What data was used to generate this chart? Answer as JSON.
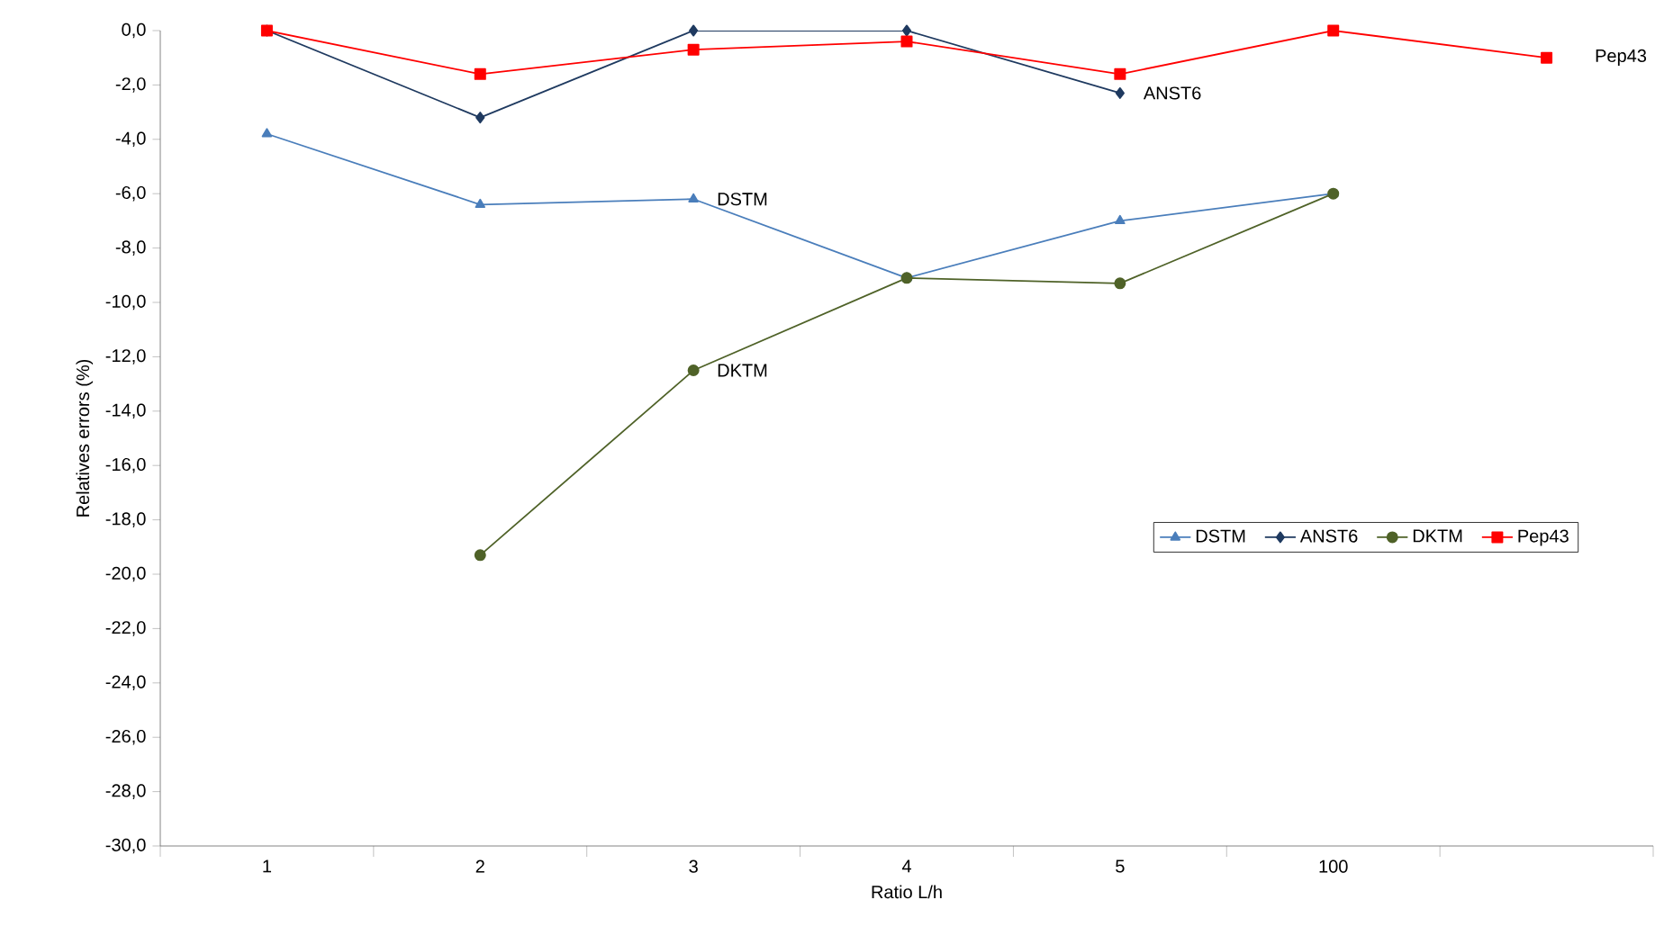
{
  "chart_data": {
    "type": "line",
    "xlabel": "Ratio L/h",
    "ylabel": "Relatives errors (%)",
    "categories": [
      "1",
      "2",
      "3",
      "4",
      "5",
      "100",
      null
    ],
    "ylim": [
      -30,
      0
    ],
    "yticks": [
      {
        "value": 0,
        "label": "0,0"
      },
      {
        "value": -2,
        "label": "-2,0"
      },
      {
        "value": -4,
        "label": "-4,0"
      },
      {
        "value": -6,
        "label": "-6,0"
      },
      {
        "value": -8,
        "label": "-8,0"
      },
      {
        "value": -10,
        "label": "-10,0"
      },
      {
        "value": -12,
        "label": "-12,0"
      },
      {
        "value": -14,
        "label": "-14,0"
      },
      {
        "value": -16,
        "label": "-16,0"
      },
      {
        "value": -18,
        "label": "-18,0"
      },
      {
        "value": -20,
        "label": "-20,0"
      },
      {
        "value": -22,
        "label": "-22,0"
      },
      {
        "value": -24,
        "label": "-24,0"
      },
      {
        "value": -26,
        "label": "-26,0"
      },
      {
        "value": -28,
        "label": "-28,0"
      },
      {
        "value": -30,
        "label": "-30,0"
      }
    ],
    "series": [
      {
        "name": "DSTM",
        "color": "#4a7ebb",
        "marker": "triangle",
        "values": [
          -3.8,
          -6.4,
          -6.2,
          -9.1,
          -7.0,
          -6.0,
          null
        ]
      },
      {
        "name": "ANST6",
        "color": "#1f3a60",
        "marker": "diamond",
        "values": [
          0,
          -3.2,
          0,
          0,
          -2.3,
          null,
          null
        ]
      },
      {
        "name": "DKTM",
        "color": "#4f6228",
        "marker": "circle",
        "values": [
          null,
          -19.3,
          -12.5,
          -9.1,
          -9.3,
          -6.0,
          null
        ]
      },
      {
        "name": "Pep43",
        "color": "#ff0000",
        "marker": "square",
        "values": [
          0,
          -1.6,
          -0.7,
          -0.4,
          -1.6,
          0,
          -1.0
        ]
      }
    ],
    "annotations": [
      {
        "text": "DSTM",
        "x": "3",
        "y": -6.2
      },
      {
        "text": "ANST6",
        "x": "5",
        "y": -2.3
      },
      {
        "text": "DKTM",
        "x": "3",
        "y": -12.5
      },
      "Pep43"
    ],
    "legend": "right",
    "grid": false
  }
}
